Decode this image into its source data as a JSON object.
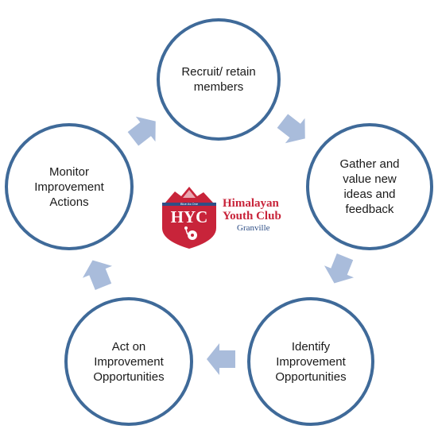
{
  "diagram": {
    "nodes": [
      {
        "id": "recruit",
        "label": "Recruit/ retain\nmembers"
      },
      {
        "id": "gather",
        "label": "Gather and\nvalue new\nideas and\nfeedback"
      },
      {
        "id": "identify",
        "label": "Identify\nImprovement\nOpportunities"
      },
      {
        "id": "act",
        "label": "Act on\nImprovement\nOpportunities"
      },
      {
        "id": "monitor",
        "label": "Monitor\nImprovement\nActions"
      }
    ],
    "colors": {
      "circle_border": "#3f6a99",
      "arrow_fill": "#a9bcdb",
      "logo_red": "#c8243a",
      "logo_blue": "#2f4f86"
    }
  },
  "logo": {
    "emblem_text": "HYC",
    "tagline": "Blue As One",
    "name_line1": "Himalayan",
    "name_line2": "Youth Club",
    "location": "Granville"
  }
}
